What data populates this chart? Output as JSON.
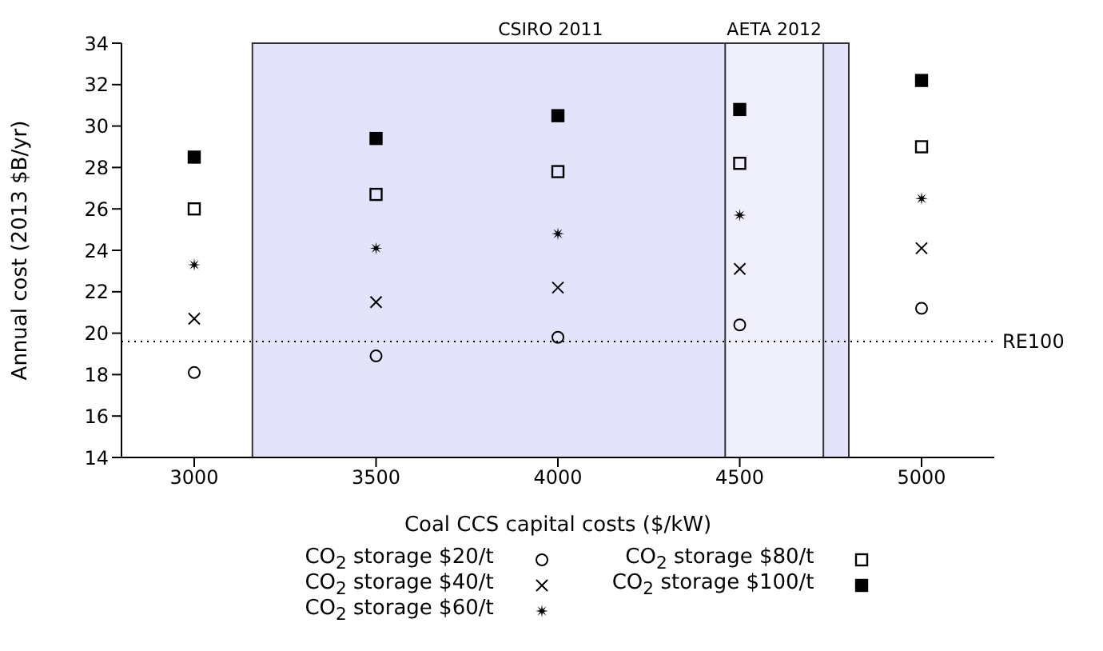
{
  "chart_data": {
    "type": "scatter",
    "xlabel": "Coal CCS capital costs ($/kW)",
    "ylabel": "Annual cost (2013 $B/yr)",
    "x": [
      3000,
      3500,
      4000,
      4500,
      5000
    ],
    "series": [
      {
        "name": "CO$_{2}$ storage $20/t",
        "color": "#000000",
        "marker": "circle",
        "values": [
          18.1,
          18.9,
          19.8,
          20.4,
          21.2
        ]
      },
      {
        "name": "CO$_{2}$ storage $40/t",
        "color": "#000000",
        "marker": "cross",
        "values": [
          20.7,
          21.5,
          22.2,
          23.1,
          24.1
        ]
      },
      {
        "name": "CO$_{2}$ storage $60/t",
        "color": "#000000",
        "marker": "star",
        "values": [
          23.3,
          24.1,
          24.8,
          25.7,
          26.5
        ]
      },
      {
        "name": "CO$_{2}$ storage $80/t",
        "color": "#000000",
        "marker": "square",
        "values": [
          26.0,
          26.7,
          27.8,
          28.2,
          29.0
        ]
      },
      {
        "name": "CO$_{2}$ storage $100/t",
        "color": "#000000",
        "marker": "square",
        "values": [
          28.5,
          29.4,
          30.5,
          30.8,
          32.2
        ]
      }
    ],
    "xlim": [
      2800,
      5200
    ],
    "xticks": [
      3000,
      3500,
      4000,
      4500,
      5000
    ],
    "ylim": [
      14,
      34
    ],
    "yticks": [
      14,
      16,
      18,
      20,
      22,
      24,
      26,
      28,
      30,
      32,
      34
    ],
    "grid": false,
    "legend": "bottom",
    "bands": [
      {
        "axis": "x",
        "from": 3160,
        "to": 4800,
        "label": "CSIRO 2011",
        "color": "#e3e3fb"
      },
      {
        "axis": "x",
        "from": 4460,
        "to": 4730,
        "label": "AETA 2012",
        "color": "#f0f0fd"
      }
    ],
    "ref_lines": [
      {
        "axis": "y",
        "value": 19.6,
        "label": "RE100",
        "line_style": "dotted"
      }
    ]
  }
}
